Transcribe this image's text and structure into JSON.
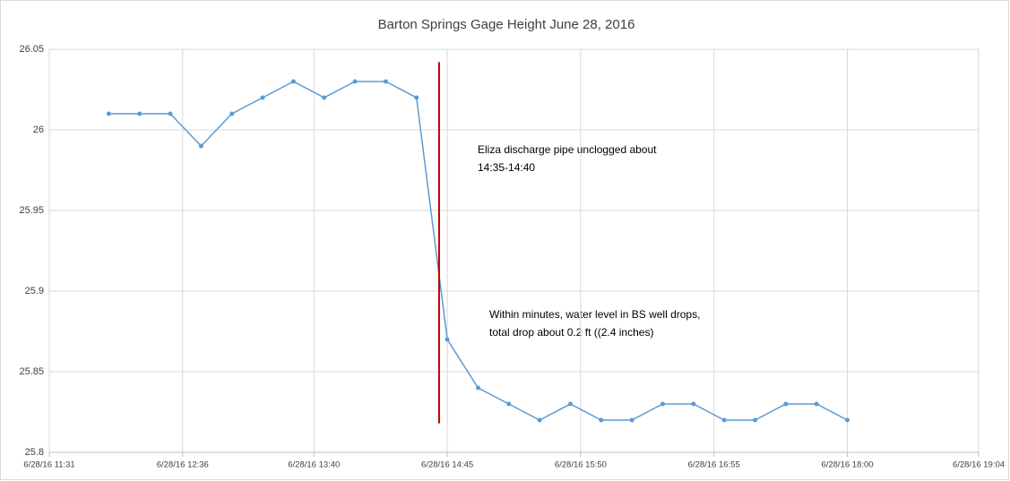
{
  "chart_data": {
    "type": "line",
    "title": "Barton Springs Gage Height June 28, 2016",
    "x": [
      "6/28/16 12:00",
      "6/28/16 12:15",
      "6/28/16 12:30",
      "6/28/16 12:45",
      "6/28/16 13:00",
      "6/28/16 13:15",
      "6/28/16 13:30",
      "6/28/16 13:45",
      "6/28/16 14:00",
      "6/28/16 14:15",
      "6/28/16 14:30",
      "6/28/16 14:45",
      "6/28/16 15:00",
      "6/28/16 15:15",
      "6/28/16 15:30",
      "6/28/16 15:45",
      "6/28/16 16:00",
      "6/28/16 16:15",
      "6/28/16 16:30",
      "6/28/16 16:45",
      "6/28/16 17:00",
      "6/28/16 17:15",
      "6/28/16 17:30",
      "6/28/16 17:45",
      "6/28/16 18:00"
    ],
    "series": [
      {
        "name": "Gage Height",
        "color": "#5b9bd5",
        "values": [
          26.01,
          26.01,
          26.01,
          25.99,
          26.01,
          26.02,
          26.03,
          26.02,
          26.03,
          26.03,
          26.02,
          25.87,
          25.84,
          25.83,
          25.82,
          25.83,
          25.82,
          25.82,
          25.83,
          25.83,
          25.82,
          25.82,
          25.83,
          25.83,
          25.82
        ]
      }
    ],
    "xlim": [
      "6/28/16 11:31",
      "6/28/16 19:04"
    ],
    "xticks": [
      "6/28/16 11:31",
      "6/28/16 12:36",
      "6/28/16 13:40",
      "6/28/16 14:45",
      "6/28/16 15:50",
      "6/28/16 16:55",
      "6/28/16 18:00",
      "6/28/16 19:04"
    ],
    "ylim": [
      25.8,
      26.05
    ],
    "yticks": [
      25.8,
      25.85,
      25.9,
      25.95,
      26,
      26.05
    ],
    "grid": true,
    "vline": {
      "x": "6/28/16 14:41",
      "ylim": [
        25.818,
        26.042
      ],
      "color": "#c00000"
    },
    "annotations": [
      {
        "lines": [
          "Eliza discharge pipe unclogged about",
          "14:35-14:40"
        ]
      },
      {
        "lines": [
          "Within minutes, water level in BS well drops,",
          "total drop about 0.2 ft ((2.4 inches)"
        ]
      }
    ]
  }
}
